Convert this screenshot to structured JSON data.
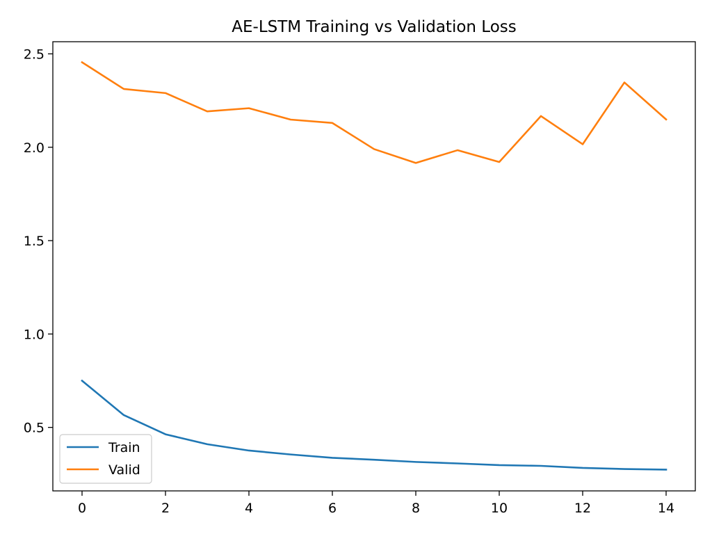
{
  "chart_data": {
    "type": "line",
    "title": "AE-LSTM Training vs Validation Loss",
    "xlabel": "",
    "ylabel": "",
    "x": [
      0,
      1,
      2,
      3,
      4,
      5,
      6,
      7,
      8,
      9,
      10,
      11,
      12,
      13,
      14
    ],
    "xlim": [
      -0.7,
      14.7
    ],
    "ylim": [
      0.16,
      2.565
    ],
    "xticks": [
      0,
      2,
      4,
      6,
      8,
      10,
      12,
      14
    ],
    "xtick_labels": [
      "0",
      "2",
      "4",
      "6",
      "8",
      "10",
      "12",
      "14"
    ],
    "yticks": [
      0.5,
      1.0,
      1.5,
      2.0,
      2.5
    ],
    "ytick_labels": [
      "0.5",
      "1.0",
      "1.5",
      "2.0",
      "2.5"
    ],
    "grid": false,
    "legend_position": "lower-left",
    "series": [
      {
        "name": "Train",
        "color": "#1f77b4",
        "values": [
          0.75,
          0.566,
          0.463,
          0.41,
          0.376,
          0.355,
          0.337,
          0.327,
          0.315,
          0.307,
          0.298,
          0.294,
          0.283,
          0.277,
          0.274
        ]
      },
      {
        "name": "Valid",
        "color": "#ff7f0e",
        "values": [
          2.455,
          2.312,
          2.29,
          2.192,
          2.209,
          2.148,
          2.13,
          1.99,
          1.916,
          1.984,
          1.921,
          2.167,
          2.016,
          2.347,
          2.149
        ]
      }
    ]
  }
}
